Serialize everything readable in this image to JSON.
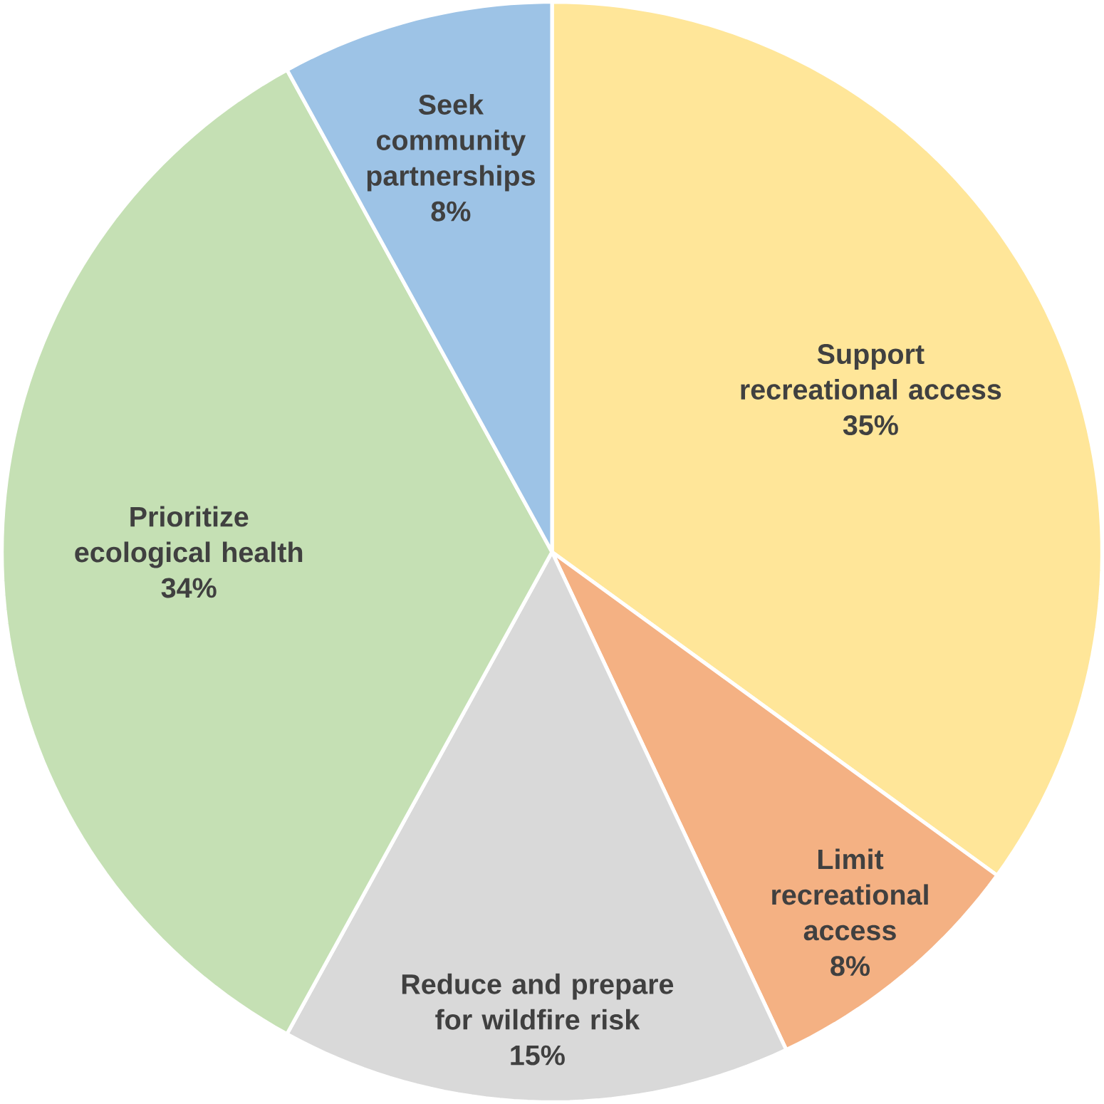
{
  "chart_data": {
    "type": "pie",
    "categories": [
      "Support recreational access",
      "Limit recreational access",
      "Reduce and prepare for wildfire risk",
      "Prioritize ecological health",
      "Seek community partnerships"
    ],
    "values": [
      35,
      8,
      15,
      34,
      8
    ],
    "value_labels": [
      "35%",
      "8%",
      "15%",
      "34%",
      "8%"
    ],
    "colors": [
      "#ffe699",
      "#f4b183",
      "#d9d9d9",
      "#c5e0b4",
      "#9dc3e6"
    ]
  }
}
